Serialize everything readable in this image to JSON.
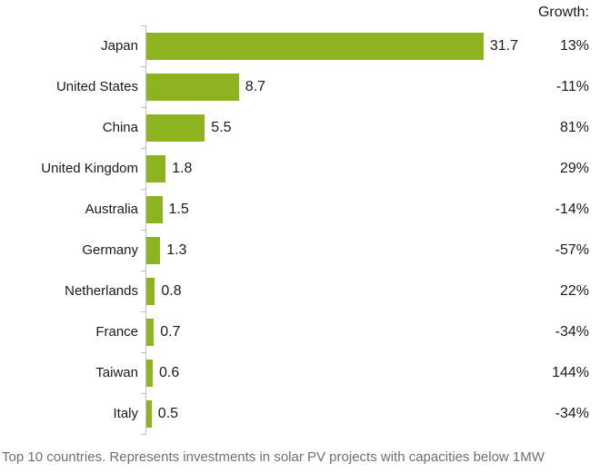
{
  "chart": {
    "growth_header": "Growth:",
    "caption": "Top 10 countries. Represents investments in solar PV projects with capacities below 1MW",
    "bar_color": "#8DB321",
    "axis_color": "#C0C0C0",
    "text_color": "#1A1A1A",
    "caption_color": "#6F6F6F"
  },
  "chart_data": {
    "type": "bar",
    "orientation": "horizontal",
    "title": "",
    "xlabel": "",
    "ylabel": "",
    "categories": [
      "Japan",
      "United States",
      "China",
      "United Kingdom",
      "Australia",
      "Germany",
      "Netherlands",
      "France",
      "Taiwan",
      "Italy"
    ],
    "series": [
      {
        "name": "Investment",
        "values": [
          31.7,
          8.7,
          5.5,
          1.8,
          1.5,
          1.3,
          0.8,
          0.7,
          0.6,
          0.5
        ]
      },
      {
        "name": "Growth",
        "values": [
          "13%",
          "-11%",
          "81%",
          "29%",
          "-14%",
          "-57%",
          "22%",
          "-34%",
          "144%",
          "-34%"
        ]
      }
    ],
    "value_labels_shown": true,
    "growth_column_header": "Growth:",
    "xlim": [
      0,
      33
    ],
    "grid": false,
    "legend_position": "none",
    "caption": "Top 10 countries. Represents investments in solar PV projects with capacities below 1MW"
  }
}
